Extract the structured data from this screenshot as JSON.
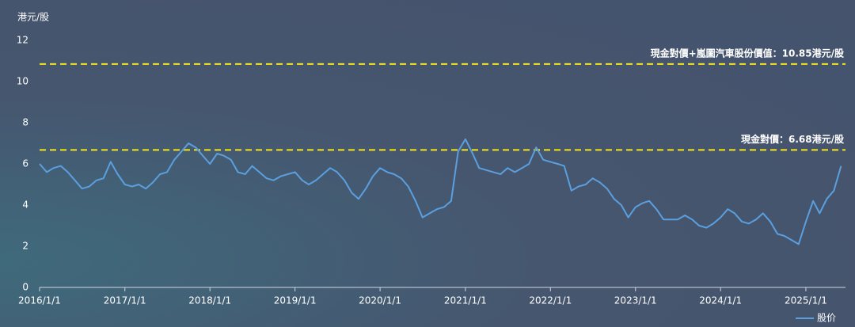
{
  "chart_data": {
    "type": "line",
    "y_axis_label": "港元/股",
    "x": [
      "2016/1/1",
      "2016/2/1",
      "2016/3/1",
      "2016/4/1",
      "2016/5/1",
      "2016/6/1",
      "2016/7/1",
      "2016/8/1",
      "2016/9/1",
      "2016/10/1",
      "2016/11/1",
      "2016/12/1",
      "2017/1/1",
      "2017/2/1",
      "2017/3/1",
      "2017/4/1",
      "2017/5/1",
      "2017/6/1",
      "2017/7/1",
      "2017/8/1",
      "2017/9/1",
      "2017/10/1",
      "2017/11/1",
      "2017/12/1",
      "2018/1/1",
      "2018/2/1",
      "2018/3/1",
      "2018/4/1",
      "2018/5/1",
      "2018/6/1",
      "2018/7/1",
      "2018/8/1",
      "2018/9/1",
      "2018/10/1",
      "2018/11/1",
      "2018/12/1",
      "2019/1/1",
      "2019/2/1",
      "2019/3/1",
      "2019/4/1",
      "2019/5/1",
      "2019/6/1",
      "2019/7/1",
      "2019/8/1",
      "2019/9/1",
      "2019/10/1",
      "2019/11/1",
      "2019/12/1",
      "2020/1/1",
      "2020/2/1",
      "2020/3/1",
      "2020/4/1",
      "2020/5/1",
      "2020/6/1",
      "2020/7/1",
      "2020/8/1",
      "2020/9/1",
      "2020/10/1",
      "2020/11/1",
      "2020/12/1",
      "2021/1/1",
      "2021/2/1",
      "2021/3/1",
      "2021/4/1",
      "2021/5/1",
      "2021/6/1",
      "2021/7/1",
      "2021/8/1",
      "2021/9/1",
      "2021/10/1",
      "2021/11/1",
      "2021/12/1",
      "2022/1/1",
      "2022/2/1",
      "2022/3/1",
      "2022/4/1",
      "2022/5/1",
      "2022/6/1",
      "2022/7/1",
      "2022/8/1",
      "2022/9/1",
      "2022/10/1",
      "2022/11/1",
      "2022/12/1",
      "2023/1/1",
      "2023/2/1",
      "2023/3/1",
      "2023/4/1",
      "2023/5/1",
      "2023/6/1",
      "2023/7/1",
      "2023/8/1",
      "2023/9/1",
      "2023/10/1",
      "2023/11/1",
      "2023/12/1",
      "2024/1/1",
      "2024/2/1",
      "2024/3/1",
      "2024/4/1",
      "2024/5/1",
      "2024/6/1",
      "2024/7/1",
      "2024/8/1",
      "2024/9/1",
      "2024/10/1",
      "2024/11/1",
      "2024/12/1",
      "2025/1/1",
      "2025/2/1",
      "2025/3/1",
      "2025/4/1",
      "2025/5/1",
      "2025/6/1"
    ],
    "series": [
      {
        "name": "股价",
        "color": "#5a9fe0",
        "values": [
          6.0,
          5.6,
          5.8,
          5.9,
          5.6,
          5.2,
          4.8,
          4.9,
          5.2,
          5.3,
          6.1,
          5.5,
          5.0,
          4.9,
          5.0,
          4.8,
          5.1,
          5.5,
          5.6,
          6.2,
          6.6,
          7.0,
          6.8,
          6.4,
          6.0,
          6.5,
          6.4,
          6.2,
          5.6,
          5.5,
          5.9,
          5.6,
          5.3,
          5.2,
          5.4,
          5.5,
          5.6,
          5.2,
          5.0,
          5.2,
          5.5,
          5.8,
          5.6,
          5.2,
          4.6,
          4.3,
          4.8,
          5.4,
          5.8,
          5.6,
          5.5,
          5.3,
          4.9,
          4.2,
          3.4,
          3.6,
          3.8,
          3.9,
          4.2,
          6.6,
          7.2,
          6.5,
          5.8,
          5.7,
          5.6,
          5.5,
          5.8,
          5.6,
          5.8,
          6.0,
          6.8,
          6.2,
          6.1,
          6.0,
          5.9,
          4.7,
          4.9,
          5.0,
          5.3,
          5.1,
          4.8,
          4.3,
          4.0,
          3.4,
          3.9,
          4.1,
          4.2,
          3.8,
          3.3,
          3.3,
          3.3,
          3.5,
          3.3,
          3.0,
          2.9,
          3.1,
          3.4,
          3.8,
          3.6,
          3.2,
          3.1,
          3.3,
          3.6,
          3.2,
          2.6,
          2.5,
          2.3,
          2.1,
          3.2,
          4.2,
          3.6,
          4.3,
          4.7,
          5.9
        ]
      }
    ],
    "reference_lines": [
      {
        "value": 10.85,
        "label": "現金對價+嵐圖汽車股份價值：10.85港元/股",
        "color": "#f5e61a"
      },
      {
        "value": 6.68,
        "label": "現金對價：6.68港元/股",
        "color": "#f5e61a"
      }
    ],
    "xlim": [
      "2016/1/1",
      "2025/6/20"
    ],
    "xticks": [
      "2016/1/1",
      "2017/1/1",
      "2018/1/1",
      "2019/1/1",
      "2020/1/1",
      "2021/1/1",
      "2022/1/1",
      "2023/1/1",
      "2024/1/1",
      "2025/1/1"
    ],
    "ylim": [
      0,
      12
    ],
    "yticks": [
      0,
      2,
      4,
      6,
      8,
      10,
      12
    ],
    "grid": false,
    "legend": "bottom-right"
  }
}
